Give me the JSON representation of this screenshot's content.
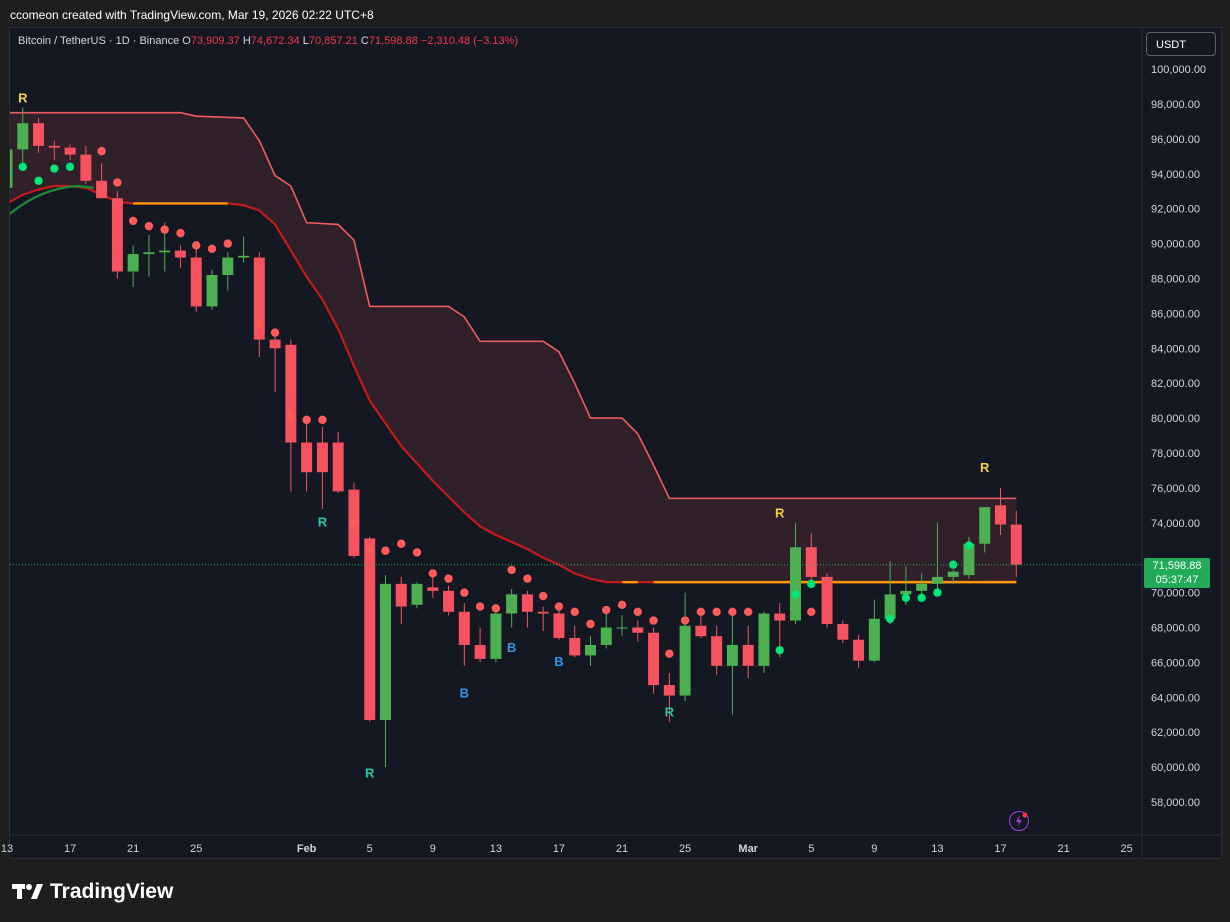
{
  "caption": "ccomeon created with TradingView.com, Mar 19, 2026 02:22 UTC+8",
  "legend": {
    "symbol": "Bitcoin / TetherUS · 1D · Binance",
    "o_label": "O",
    "o": "73,909.37",
    "h_label": "H",
    "h": "74,672.34",
    "l_label": "L",
    "l": "70,857.21",
    "c_label": "C",
    "c": "71,598.88",
    "change": "−2,310.48 (−3.13%)"
  },
  "currency": "USDT",
  "last_price": {
    "value": "71,598.88",
    "countdown": "05:37:47"
  },
  "footer_logo": "TradingView",
  "colors": {
    "up": "#4caf50",
    "down": "#f7525f",
    "band": "#f05c5c",
    "mid": "#c41a1a",
    "orange": "#ff9800",
    "dot_red": "#ff5b5b",
    "dot_green": "#00e676",
    "yellow": "#f5d040",
    "teal": "#26c6a6",
    "blue": "#2f96e6"
  },
  "chart_data": {
    "type": "candlestick",
    "y_axis": {
      "min": 56000,
      "max": 101000,
      "ticks": [
        58000,
        60000,
        62000,
        64000,
        66000,
        68000,
        70000,
        72000,
        74000,
        76000,
        78000,
        80000,
        82000,
        84000,
        86000,
        88000,
        90000,
        92000,
        94000,
        96000,
        98000,
        100000
      ]
    },
    "x_labels": [
      {
        "i": 0,
        "t": "13"
      },
      {
        "i": 4,
        "t": "17"
      },
      {
        "i": 8,
        "t": "21"
      },
      {
        "i": 12,
        "t": "25"
      },
      {
        "i": 19,
        "t": "Feb"
      },
      {
        "i": 23,
        "t": "5"
      },
      {
        "i": 27,
        "t": "9"
      },
      {
        "i": 31,
        "t": "13"
      },
      {
        "i": 35,
        "t": "17"
      },
      {
        "i": 39,
        "t": "21"
      },
      {
        "i": 43,
        "t": "25"
      },
      {
        "i": 47,
        "t": "Mar"
      },
      {
        "i": 51,
        "t": "5"
      },
      {
        "i": 55,
        "t": "9"
      },
      {
        "i": 59,
        "t": "13"
      },
      {
        "i": 63,
        "t": "17"
      },
      {
        "i": 67,
        "t": "21"
      },
      {
        "i": 71,
        "t": "25"
      }
    ],
    "candles": [
      {
        "o": 93200,
        "h": 95500,
        "l": 91000,
        "c": 95400
      },
      {
        "o": 95400,
        "h": 97800,
        "l": 94600,
        "c": 96900
      },
      {
        "o": 96900,
        "h": 97200,
        "l": 95200,
        "c": 95600
      },
      {
        "o": 95600,
        "h": 95900,
        "l": 94800,
        "c": 95500
      },
      {
        "o": 95500,
        "h": 95700,
        "l": 94800,
        "c": 95100
      },
      {
        "o": 95100,
        "h": 95600,
        "l": 93400,
        "c": 93600
      },
      {
        "o": 93600,
        "h": 94600,
        "l": 92600,
        "c": 92600
      },
      {
        "o": 92600,
        "h": 93000,
        "l": 88000,
        "c": 88400
      },
      {
        "o": 88400,
        "h": 89900,
        "l": 87500,
        "c": 89400
      },
      {
        "o": 89400,
        "h": 90500,
        "l": 88100,
        "c": 89500
      },
      {
        "o": 89500,
        "h": 91200,
        "l": 88400,
        "c": 89600
      },
      {
        "o": 89600,
        "h": 89900,
        "l": 88600,
        "c": 89200
      },
      {
        "o": 89200,
        "h": 89800,
        "l": 86100,
        "c": 86400
      },
      {
        "o": 86400,
        "h": 88500,
        "l": 86200,
        "c": 88200
      },
      {
        "o": 88200,
        "h": 89500,
        "l": 87300,
        "c": 89200
      },
      {
        "o": 89200,
        "h": 90400,
        "l": 88900,
        "c": 89300
      },
      {
        "o": 89200,
        "h": 89500,
        "l": 83500,
        "c": 84500
      },
      {
        "o": 84500,
        "h": 85000,
        "l": 81500,
        "c": 84000
      },
      {
        "o": 84200,
        "h": 84500,
        "l": 75800,
        "c": 78600
      },
      {
        "o": 78600,
        "h": 79800,
        "l": 75800,
        "c": 76900
      },
      {
        "o": 78600,
        "h": 79500,
        "l": 74800,
        "c": 76900
      },
      {
        "o": 78600,
        "h": 79200,
        "l": 75700,
        "c": 75800
      },
      {
        "o": 75900,
        "h": 76300,
        "l": 72000,
        "c": 72100
      },
      {
        "o": 73100,
        "h": 73200,
        "l": 62600,
        "c": 62700
      },
      {
        "o": 62700,
        "h": 71000,
        "l": 60000,
        "c": 70500
      },
      {
        "o": 70500,
        "h": 70900,
        "l": 68200,
        "c": 69200
      },
      {
        "o": 69300,
        "h": 70600,
        "l": 69100,
        "c": 70500
      },
      {
        "o": 70300,
        "h": 70900,
        "l": 69700,
        "c": 70100
      },
      {
        "o": 70100,
        "h": 70400,
        "l": 68700,
        "c": 68900
      },
      {
        "o": 68900,
        "h": 69400,
        "l": 65800,
        "c": 67000
      },
      {
        "o": 67000,
        "h": 68000,
        "l": 66000,
        "c": 66200
      },
      {
        "o": 66200,
        "h": 69000,
        "l": 66000,
        "c": 68800
      },
      {
        "o": 68800,
        "h": 70200,
        "l": 68000,
        "c": 69900
      },
      {
        "o": 69900,
        "h": 70100,
        "l": 68000,
        "c": 68900
      },
      {
        "o": 68900,
        "h": 69200,
        "l": 67800,
        "c": 68800
      },
      {
        "o": 68800,
        "h": 69300,
        "l": 67300,
        "c": 67400
      },
      {
        "o": 67400,
        "h": 68100,
        "l": 66300,
        "c": 66400
      },
      {
        "o": 66400,
        "h": 67500,
        "l": 65800,
        "c": 67000
      },
      {
        "o": 67000,
        "h": 68900,
        "l": 66800,
        "c": 68000
      },
      {
        "o": 68000,
        "h": 68700,
        "l": 67500,
        "c": 68000
      },
      {
        "o": 68000,
        "h": 68400,
        "l": 67200,
        "c": 67700
      },
      {
        "o": 67700,
        "h": 68000,
        "l": 64200,
        "c": 64700
      },
      {
        "o": 64700,
        "h": 65400,
        "l": 62600,
        "c": 64100
      },
      {
        "o": 64100,
        "h": 70000,
        "l": 63800,
        "c": 68100
      },
      {
        "o": 68100,
        "h": 68700,
        "l": 67400,
        "c": 67500
      },
      {
        "o": 67500,
        "h": 68100,
        "l": 65300,
        "c": 65800
      },
      {
        "o": 65800,
        "h": 68700,
        "l": 63000,
        "c": 67000
      },
      {
        "o": 67000,
        "h": 68100,
        "l": 65100,
        "c": 65800
      },
      {
        "o": 65800,
        "h": 68900,
        "l": 65400,
        "c": 68800
      },
      {
        "o": 68800,
        "h": 69400,
        "l": 66300,
        "c": 68400
      },
      {
        "o": 68400,
        "h": 74000,
        "l": 68200,
        "c": 72600
      },
      {
        "o": 72600,
        "h": 73400,
        "l": 70600,
        "c": 70900
      },
      {
        "o": 70900,
        "h": 71100,
        "l": 68000,
        "c": 68200
      },
      {
        "o": 68200,
        "h": 68400,
        "l": 67100,
        "c": 67300
      },
      {
        "o": 67300,
        "h": 67600,
        "l": 65700,
        "c": 66100
      },
      {
        "o": 66100,
        "h": 69600,
        "l": 66000,
        "c": 68500
      },
      {
        "o": 68500,
        "h": 71800,
        "l": 68200,
        "c": 69900
      },
      {
        "o": 69900,
        "h": 71500,
        "l": 69300,
        "c": 70100
      },
      {
        "o": 70100,
        "h": 71100,
        "l": 69600,
        "c": 70500
      },
      {
        "o": 70500,
        "h": 74000,
        "l": 70000,
        "c": 70900
      },
      {
        "o": 70900,
        "h": 71300,
        "l": 70500,
        "c": 71200
      },
      {
        "o": 71000,
        "h": 73200,
        "l": 70800,
        "c": 72800
      },
      {
        "o": 72800,
        "h": 74900,
        "l": 72300,
        "c": 74900
      },
      {
        "o": 75000,
        "h": 76000,
        "l": 73300,
        "c": 73900
      },
      {
        "o": 73900,
        "h": 74700,
        "l": 70900,
        "c": 71600
      }
    ],
    "upper_band": [
      [
        0,
        97500
      ],
      [
        11,
        97500
      ],
      [
        12,
        97300
      ],
      [
        15,
        97200
      ],
      [
        16,
        95900
      ],
      [
        17,
        93900
      ],
      [
        18,
        93300
      ],
      [
        19,
        91200
      ],
      [
        21,
        91100
      ],
      [
        22,
        90200
      ],
      [
        23,
        86400
      ],
      [
        28,
        86400
      ],
      [
        29,
        85800
      ],
      [
        30,
        84400
      ],
      [
        34,
        84400
      ],
      [
        35,
        83800
      ],
      [
        36,
        82000
      ],
      [
        37,
        80000
      ],
      [
        39,
        80000
      ],
      [
        40,
        79100
      ],
      [
        41,
        77300
      ],
      [
        42,
        75400
      ],
      [
        64,
        75400
      ]
    ],
    "mid_line": [
      [
        0,
        92300
      ],
      [
        1,
        92800
      ],
      [
        2,
        93100
      ],
      [
        3,
        93300
      ],
      [
        4,
        93300
      ],
      [
        5,
        93200
      ],
      [
        6,
        92800
      ],
      [
        7,
        92400
      ],
      [
        8,
        92300
      ],
      [
        9,
        92300
      ],
      [
        10,
        92300
      ],
      [
        11,
        92300
      ],
      [
        12,
        92300
      ],
      [
        13,
        92300
      ],
      [
        14,
        92300
      ],
      [
        15,
        92200
      ],
      [
        16,
        91900
      ],
      [
        17,
        91100
      ],
      [
        18,
        89600
      ],
      [
        19,
        88100
      ],
      [
        20,
        86800
      ],
      [
        21,
        85100
      ],
      [
        22,
        83000
      ],
      [
        23,
        81000
      ],
      [
        24,
        79700
      ],
      [
        25,
        78400
      ],
      [
        26,
        77400
      ],
      [
        27,
        76400
      ],
      [
        28,
        75500
      ],
      [
        29,
        74600
      ],
      [
        30,
        73800
      ],
      [
        31,
        73300
      ],
      [
        32,
        72900
      ],
      [
        33,
        72500
      ],
      [
        34,
        72000
      ],
      [
        35,
        71600
      ],
      [
        36,
        71100
      ],
      [
        37,
        70800
      ],
      [
        38,
        70600
      ],
      [
        39,
        70600
      ],
      [
        64,
        70600
      ]
    ],
    "orange_segments": [
      [
        8,
        14
      ],
      [
        39,
        40
      ],
      [
        41,
        64
      ]
    ],
    "red_dots": [
      [
        6,
        95300
      ],
      [
        7,
        93500
      ],
      [
        8,
        91300
      ],
      [
        9,
        91000
      ],
      [
        10,
        90800
      ],
      [
        11,
        90600
      ],
      [
        12,
        89900
      ],
      [
        13,
        89700
      ],
      [
        14,
        90000
      ],
      [
        16,
        85400
      ],
      [
        17,
        84900
      ],
      [
        18,
        80100
      ],
      [
        19,
        79900
      ],
      [
        20,
        79900
      ],
      [
        22,
        74000
      ],
      [
        23,
        72500
      ],
      [
        24,
        72400
      ],
      [
        25,
        72800
      ],
      [
        26,
        72300
      ],
      [
        27,
        71100
      ],
      [
        28,
        70800
      ],
      [
        29,
        70000
      ],
      [
        30,
        69200
      ],
      [
        31,
        69100
      ],
      [
        32,
        71300
      ],
      [
        33,
        70800
      ],
      [
        34,
        69800
      ],
      [
        35,
        69200
      ],
      [
        36,
        68900
      ],
      [
        37,
        68200
      ],
      [
        38,
        69000
      ],
      [
        39,
        69300
      ],
      [
        40,
        68900
      ],
      [
        41,
        68400
      ],
      [
        42,
        66500
      ],
      [
        43,
        68400
      ],
      [
        44,
        68900
      ],
      [
        45,
        68900
      ],
      [
        46,
        68900
      ],
      [
        47,
        68900
      ],
      [
        51,
        68900
      ]
    ],
    "green_dots": [
      [
        0,
        93900
      ],
      [
        1,
        94400
      ],
      [
        2,
        93600
      ],
      [
        3,
        94300
      ],
      [
        4,
        94400
      ],
      [
        49,
        66700
      ],
      [
        50,
        69900
      ],
      [
        51,
        70500
      ],
      [
        56,
        68500
      ],
      [
        57,
        69700
      ],
      [
        58,
        69700
      ],
      [
        59,
        70000
      ],
      [
        60,
        71600
      ],
      [
        61,
        72700
      ]
    ],
    "labels": [
      {
        "i": 1,
        "p": 98100,
        "t": "R",
        "c": "yellow"
      },
      {
        "i": 20,
        "p": 73800,
        "t": "R",
        "c": "teal"
      },
      {
        "i": 23,
        "p": 59400,
        "t": "R",
        "c": "teal"
      },
      {
        "i": 29,
        "p": 64000,
        "t": "B",
        "c": "blue"
      },
      {
        "i": 32,
        "p": 66600,
        "t": "B",
        "c": "blue"
      },
      {
        "i": 35,
        "p": 65800,
        "t": "B",
        "c": "blue"
      },
      {
        "i": 42,
        "p": 62900,
        "t": "R",
        "c": "teal"
      },
      {
        "i": 49,
        "p": 74300,
        "t": "R",
        "c": "yellow"
      },
      {
        "i": 62,
        "p": 76900,
        "t": "R",
        "c": "yellow"
      }
    ]
  }
}
